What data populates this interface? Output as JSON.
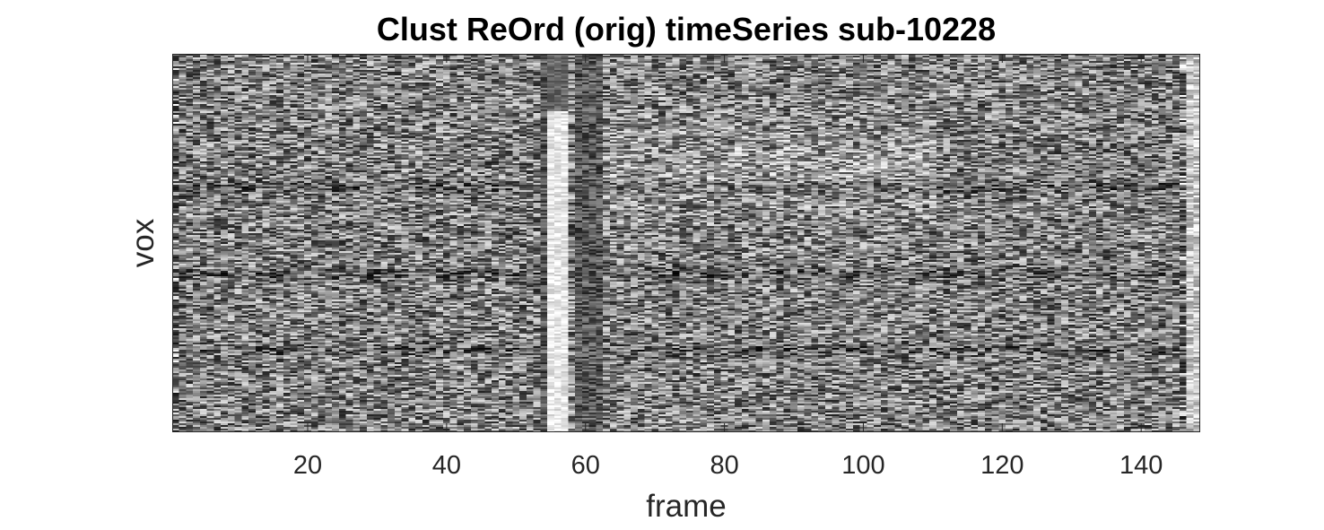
{
  "chart_data": {
    "type": "heatmap",
    "title": "Clust ReOrd (orig) timeSeries sub-10228",
    "xlabel": "frame",
    "ylabel": "vox",
    "colormap": "gray",
    "xlim": [
      0.5,
      148.5
    ],
    "n_frames": 148,
    "x_ticks": [
      20,
      40,
      60,
      80,
      100,
      120,
      140
    ],
    "y_ticks": [],
    "grid": false,
    "features": {
      "bright_columns": [
        55,
        56,
        57
      ],
      "dark_columns": [
        54,
        59,
        60,
        61,
        62
      ],
      "dark_edge_columns": [
        1,
        146
      ],
      "bright_edge_columns": [
        147,
        148
      ],
      "diffuse_bright_region_frames": [
        62,
        110
      ],
      "dark_horizontal_band_rows": [
        0.35,
        0.58,
        0.78
      ]
    }
  }
}
